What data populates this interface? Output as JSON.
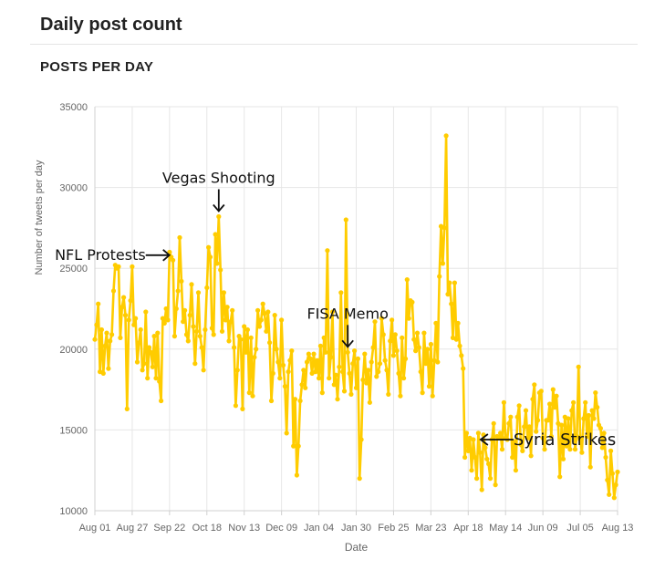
{
  "header": {
    "title": "Daily post count"
  },
  "section": {
    "title": "POSTS PER DAY"
  },
  "chart_data": {
    "type": "line",
    "title": "",
    "xlabel": "Date",
    "ylabel": "Number of tweets per day",
    "ylim": [
      10000,
      35000
    ],
    "yticks": [
      10000,
      15000,
      20000,
      25000,
      30000,
      35000
    ],
    "ytick_labels": [
      "10000",
      "15000",
      "20000",
      "25000",
      "30000",
      "35000"
    ],
    "xtick_labels": [
      "Aug 01",
      "Aug 27",
      "Sep 22",
      "Oct 18",
      "Nov 13",
      "Dec 09",
      "Jan 04",
      "Jan 30",
      "Feb 25",
      "Mar 23",
      "Apr 18",
      "May 14",
      "Jun 09",
      "Jul 05",
      "Aug 13"
    ],
    "grid": true,
    "line_color": "#FFCC00",
    "series": [
      {
        "values": [
          20600,
          21500,
          22800,
          18600,
          21200,
          18500,
          20200,
          21000,
          18800,
          20500,
          20900,
          23600,
          25200,
          25000,
          25100,
          20700,
          22600,
          23200,
          22100,
          16300,
          21800,
          23000,
          25100,
          21500,
          21900,
          19200,
          20400,
          21200,
          18700,
          19100,
          22300,
          18200,
          20100,
          19800,
          18900,
          20800,
          18200,
          21000,
          18000,
          16800,
          21900,
          21600,
          22500,
          21800,
          26000,
          25700,
          25500,
          20800,
          22500,
          23600,
          26900,
          24200,
          21700,
          22400,
          20900,
          20500,
          22100,
          24000,
          21400,
          19100,
          21100,
          23500,
          20800,
          20100,
          18700,
          21200,
          23800,
          26300,
          25700,
          21300,
          20900,
          27100,
          25300,
          28200,
          24900,
          21100,
          23500,
          21800,
          22600,
          20500,
          21700,
          22400,
          20100,
          16500,
          18700,
          20800,
          20600,
          16300,
          21400,
          19800,
          21200,
          17300,
          20700,
          17100,
          19500,
          20000,
          22400,
          21400,
          21800,
          22800,
          22200,
          21100,
          22300,
          20400,
          16800,
          18500,
          22100,
          20000,
          19200,
          18200,
          21800,
          19000,
          17700,
          14800,
          18600,
          19300,
          19900,
          14000,
          16900,
          12200,
          14000,
          16800,
          17800,
          18700,
          17600,
          19200,
          19700,
          19400,
          18500,
          19700,
          18600,
          19300,
          18200,
          20200,
          17300,
          20700,
          19800,
          26100,
          18200,
          19500,
          22300,
          17800,
          18400,
          16900,
          18900,
          23500,
          18600,
          17400,
          28000,
          19800,
          18500,
          17200,
          19100,
          19900,
          17600,
          19400,
          12000,
          14400,
          18100,
          19700,
          17900,
          18700,
          16700,
          19200,
          20100,
          21700,
          18300,
          18600,
          19100,
          21900,
          20900,
          19300,
          18700,
          17200,
          20500,
          21800,
          19600,
          20900,
          19900,
          18500,
          17100,
          20700,
          18200,
          19400,
          24300,
          21900,
          23000,
          22900,
          20600,
          19900,
          21000,
          20100,
          18600,
          17300,
          21000,
          19100,
          20000,
          17700,
          20300,
          17100,
          19300,
          21600,
          19200,
          24500,
          27600,
          25300,
          27500,
          33200,
          23400,
          24100,
          22800,
          20700,
          24100,
          20600,
          21600,
          20200,
          19600,
          18800,
          13300,
          14800,
          13700,
          14500,
          12500,
          14400,
          13300,
          12000,
          14800,
          13600,
          11300,
          14700,
          13900,
          13200,
          12900,
          12000,
          14400,
          15400,
          11600,
          14600,
          14500,
          14800,
          13800,
          16700,
          14500,
          14400,
          15400,
          15800,
          13300,
          14300,
          12500,
          15800,
          16500,
          14100,
          13700,
          15200,
          16200,
          14500,
          15200,
          13400,
          16900,
          17800,
          14900,
          15600,
          17300,
          17400,
          14500,
          13800,
          15600,
          15600,
          16600,
          14600,
          17500,
          16400,
          17100,
          15400,
          12100,
          15300,
          13200,
          15800,
          14000,
          15700,
          13800,
          16200,
          16700,
          13800,
          14600,
          18900,
          14400,
          13600,
          15700,
          16700,
          14600,
          15900,
          12700,
          16200,
          15700,
          17300,
          16400,
          15300,
          15100,
          13900,
          14800,
          13300,
          11900,
          11000,
          13700,
          12300,
          10800,
          11600,
          12400
        ]
      }
    ],
    "annotations": [
      {
        "text": "NFL Protests",
        "arrow": "right",
        "index": 45
      },
      {
        "text": "Vegas Shooting",
        "arrow": "down",
        "index": 73
      },
      {
        "text": "FISA Memo",
        "arrow": "down",
        "index": 149
      },
      {
        "text": "Syria Strikes",
        "arrow": "left",
        "index": 223
      }
    ]
  }
}
